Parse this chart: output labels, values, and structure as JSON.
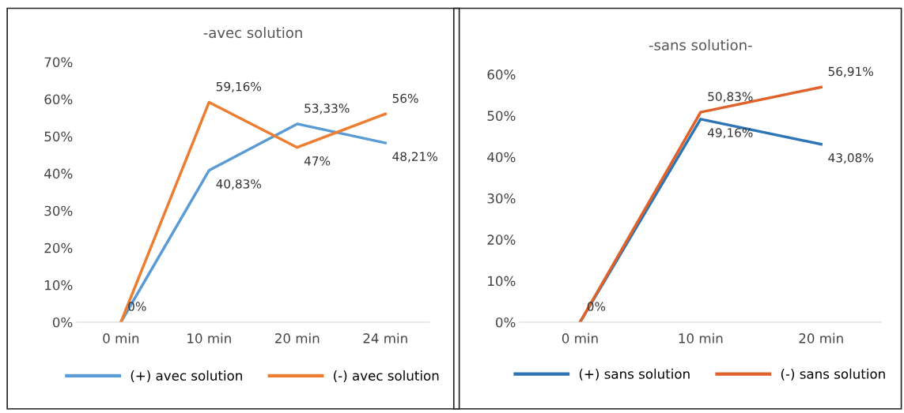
{
  "chart_data": [
    {
      "type": "line",
      "title": "-avec solution",
      "categories": [
        "0 min",
        "10 min",
        "20 min",
        "24 min"
      ],
      "ylim": [
        0,
        70
      ],
      "yticks": [
        {
          "value": 0,
          "label": "0%"
        },
        {
          "value": 10,
          "label": "10%"
        },
        {
          "value": 20,
          "label": "20%"
        },
        {
          "value": 30,
          "label": "30%"
        },
        {
          "value": 40,
          "label": "40%"
        },
        {
          "value": 50,
          "label": "50%"
        },
        {
          "value": 60,
          "label": "60%"
        },
        {
          "value": 70,
          "label": "70%"
        }
      ],
      "grid": false,
      "legend": "bottom",
      "marker": "none",
      "line_style": "solid",
      "series": [
        {
          "name": "(+) avec solution",
          "color": "#5b9bd5",
          "values": [
            0,
            40.83,
            53.33,
            48.21
          ],
          "value_labels": [
            null,
            "40,83%",
            "53,33%",
            "48,21%"
          ]
        },
        {
          "name": "(-) avec solution",
          "color": "#ed7d31",
          "values": [
            0,
            59.16,
            47,
            56
          ],
          "value_labels": [
            "0%",
            "59,16%",
            "47%",
            "56%"
          ]
        }
      ]
    },
    {
      "type": "line",
      "title": "-sans solution-",
      "categories": [
        "0 min",
        "10 min",
        "20 min"
      ],
      "ylim": [
        0,
        60
      ],
      "yticks": [
        {
          "value": 0,
          "label": "0%"
        },
        {
          "value": 10,
          "label": "10%"
        },
        {
          "value": 20,
          "label": "20%"
        },
        {
          "value": 30,
          "label": "30%"
        },
        {
          "value": 40,
          "label": "40%"
        },
        {
          "value": 50,
          "label": "50%"
        },
        {
          "value": 60,
          "label": "60%"
        }
      ],
      "grid": false,
      "legend": "bottom",
      "marker": "none",
      "line_style": "solid",
      "series": [
        {
          "name": "(+) sans solution",
          "color": "#2e75b6",
          "values": [
            0,
            49.16,
            43.08
          ],
          "value_labels": [
            null,
            "49,16%",
            "43,08%"
          ]
        },
        {
          "name": "(-) sans solution",
          "color": "#e0622a",
          "values": [
            0,
            50.83,
            56.91
          ],
          "value_labels": [
            "0%",
            "50,83%",
            "56,91%"
          ]
        }
      ]
    }
  ]
}
